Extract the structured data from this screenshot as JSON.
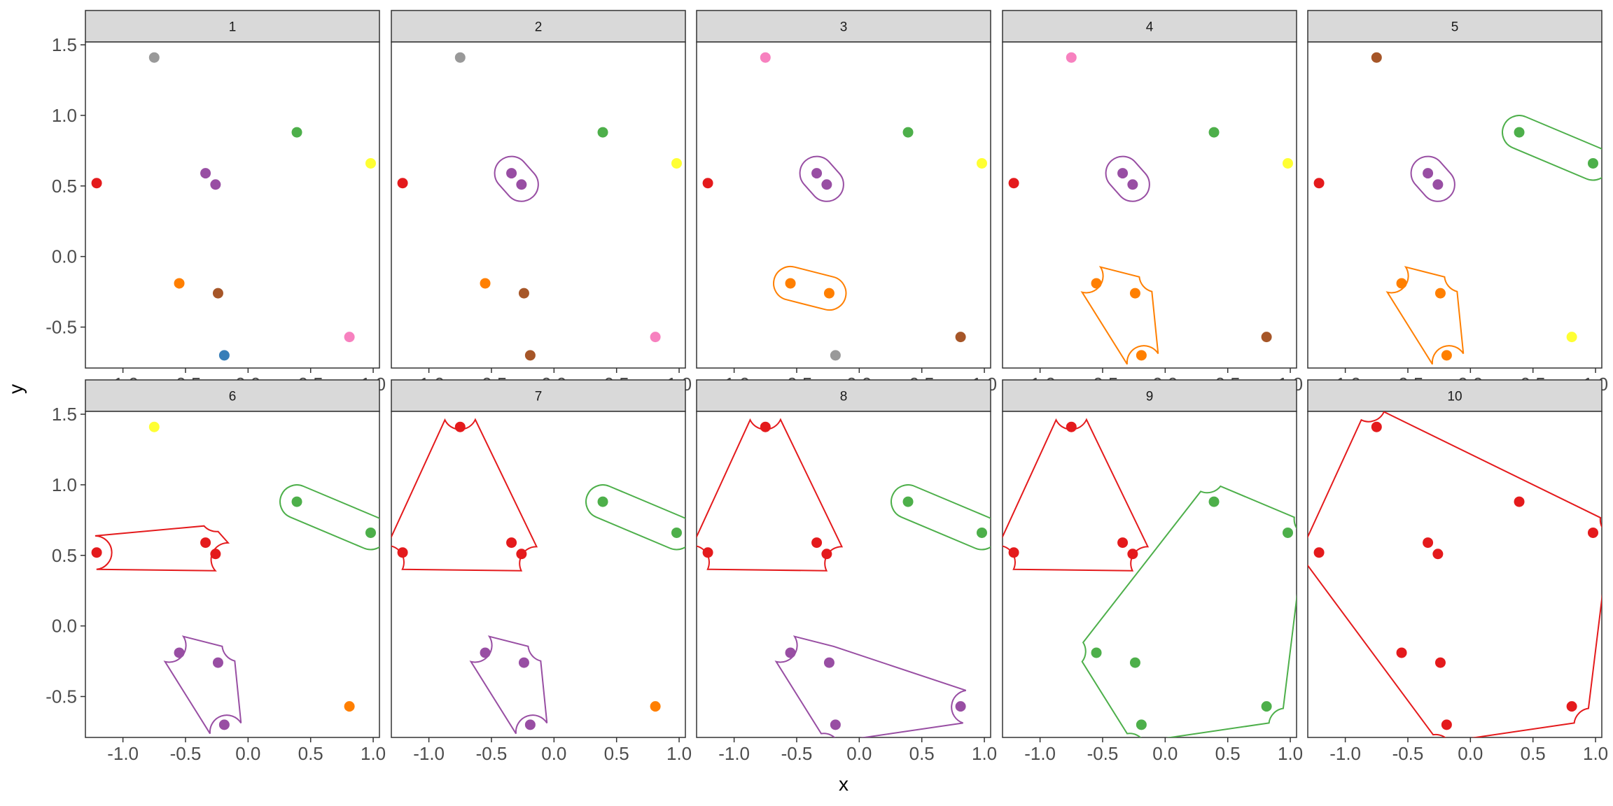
{
  "chart_data": {
    "type": "scatter",
    "xlabel": "x",
    "ylabel": "y",
    "xlim": [
      -1.3,
      1.05
    ],
    "ylim": [
      -0.79,
      1.52
    ],
    "x_ticks": [
      "-1.0",
      "-0.5",
      "0.0",
      "0.5",
      "1.0"
    ],
    "x_tick_values": [
      -1.0,
      -0.5,
      0.0,
      0.5,
      1.0
    ],
    "y_ticks": [
      "1.5",
      "1.0",
      "0.5",
      "0.0",
      "-0.5"
    ],
    "y_tick_values": [
      1.5,
      1.0,
      0.5,
      0.0,
      -0.5
    ],
    "grid": false,
    "legend": "none",
    "points": [
      {
        "x": -0.75,
        "y": 1.41
      },
      {
        "x": -1.21,
        "y": 0.52
      },
      {
        "x": 0.39,
        "y": 0.88
      },
      {
        "x": 0.98,
        "y": 0.66
      },
      {
        "x": -0.34,
        "y": 0.59
      },
      {
        "x": -0.26,
        "y": 0.51
      },
      {
        "x": -0.55,
        "y": -0.19
      },
      {
        "x": -0.24,
        "y": -0.26
      },
      {
        "x": -0.19,
        "y": -0.7
      },
      {
        "x": 0.81,
        "y": -0.57
      }
    ],
    "palette": {
      "red": "#E41A1C",
      "blue": "#377EB8",
      "green": "#4DAF4A",
      "purple": "#984EA3",
      "orange": "#FF7F00",
      "yellow": "#FFFF33",
      "brown": "#A65628",
      "pink": "#F781BF",
      "grey": "#999999"
    },
    "facets": [
      {
        "label": "1",
        "colors": [
          "grey",
          "red",
          "green",
          "yellow",
          "purple",
          "purple",
          "orange",
          "brown",
          "blue",
          "pink"
        ],
        "clusters": []
      },
      {
        "label": "2",
        "colors": [
          "grey",
          "red",
          "green",
          "yellow",
          "purple",
          "purple",
          "orange",
          "brown",
          "brown",
          "pink"
        ],
        "clusters": [
          [
            4,
            5
          ]
        ]
      },
      {
        "label": "3",
        "colors": [
          "pink",
          "red",
          "green",
          "yellow",
          "purple",
          "purple",
          "orange",
          "orange",
          "grey",
          "brown"
        ],
        "clusters": [
          [
            4,
            5
          ],
          [
            6,
            7
          ]
        ]
      },
      {
        "label": "4",
        "colors": [
          "pink",
          "red",
          "green",
          "yellow",
          "purple",
          "purple",
          "orange",
          "orange",
          "orange",
          "brown"
        ],
        "clusters": [
          [
            4,
            5
          ],
          [
            6,
            7,
            8
          ]
        ]
      },
      {
        "label": "5",
        "colors": [
          "brown",
          "red",
          "green",
          "green",
          "purple",
          "purple",
          "orange",
          "orange",
          "orange",
          "yellow"
        ],
        "clusters": [
          [
            4,
            5
          ],
          [
            6,
            7,
            8
          ],
          [
            2,
            3
          ]
        ]
      },
      {
        "label": "6",
        "colors": [
          "yellow",
          "red",
          "green",
          "green",
          "red",
          "red",
          "purple",
          "purple",
          "purple",
          "orange"
        ],
        "clusters": [
          [
            1,
            4,
            5
          ],
          [
            6,
            7,
            8
          ],
          [
            2,
            3
          ]
        ]
      },
      {
        "label": "7",
        "colors": [
          "red",
          "red",
          "green",
          "green",
          "red",
          "red",
          "purple",
          "purple",
          "purple",
          "orange"
        ],
        "clusters": [
          [
            0,
            1,
            4,
            5
          ],
          [
            6,
            7,
            8
          ],
          [
            2,
            3
          ]
        ]
      },
      {
        "label": "8",
        "colors": [
          "red",
          "red",
          "green",
          "green",
          "red",
          "red",
          "purple",
          "purple",
          "purple",
          "purple"
        ],
        "clusters": [
          [
            0,
            1,
            4,
            5
          ],
          [
            6,
            7,
            8,
            9
          ],
          [
            2,
            3
          ]
        ]
      },
      {
        "label": "9",
        "colors": [
          "red",
          "red",
          "green",
          "green",
          "red",
          "red",
          "green",
          "green",
          "green",
          "green"
        ],
        "clusters": [
          [
            0,
            1,
            4,
            5
          ],
          [
            2,
            3,
            6,
            7,
            8,
            9
          ]
        ]
      },
      {
        "label": "10",
        "colors": [
          "red",
          "red",
          "red",
          "red",
          "red",
          "red",
          "red",
          "red",
          "red",
          "red"
        ],
        "clusters": [
          [
            0,
            1,
            2,
            3,
            4,
            5,
            6,
            7,
            8,
            9
          ]
        ]
      }
    ]
  }
}
